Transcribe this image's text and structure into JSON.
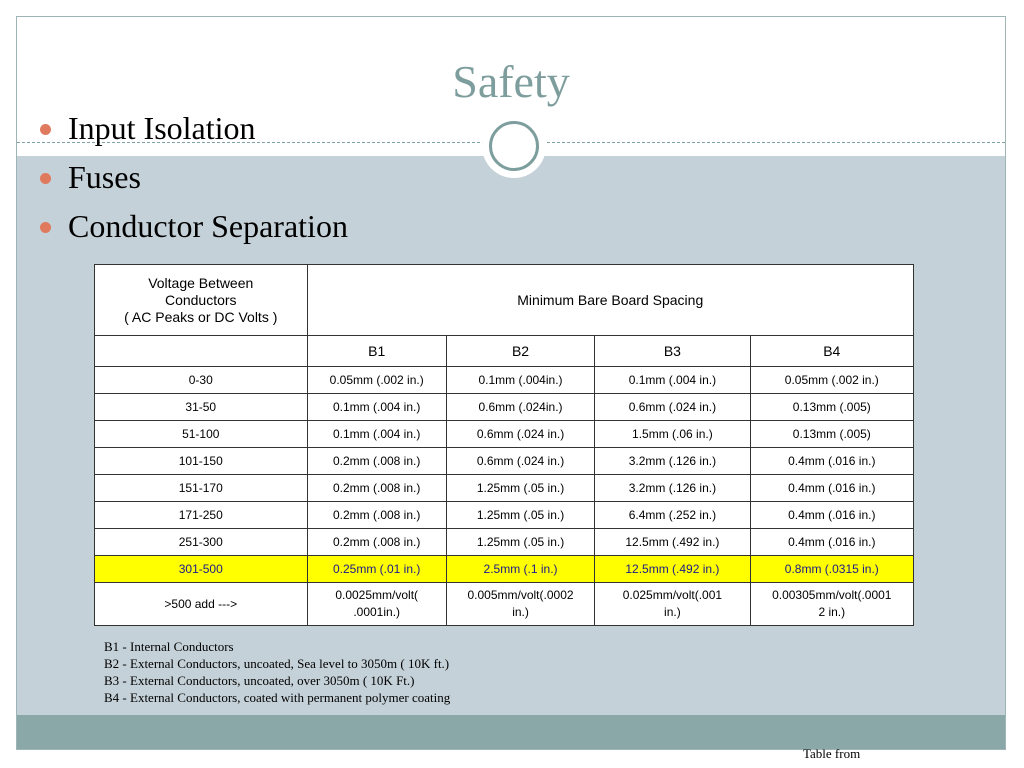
{
  "slide": {
    "title": "Safety",
    "bullets": [
      "Input Isolation",
      "Fuses",
      "Conductor Separation"
    ]
  },
  "table": {
    "header_voltage_line1": "Voltage Between",
    "header_voltage_line2": "Conductors",
    "header_voltage_line3": "( AC Peaks or DC Volts )",
    "header_spacing": "Minimum Bare Board Spacing",
    "columns": [
      "B1",
      "B2",
      "B3",
      "B4"
    ],
    "rows": [
      {
        "range": "0-30",
        "b1": "0.05mm (.002 in.)",
        "b2": "0.1mm (.004in.)",
        "b3": "0.1mm (.004 in.)",
        "b4": "0.05mm (.002 in.)"
      },
      {
        "range": "31-50",
        "b1": "0.1mm (.004 in.)",
        "b2": "0.6mm (.024in.)",
        "b3": "0.6mm (.024 in.)",
        "b4": "0.13mm (.005)"
      },
      {
        "range": "51-100",
        "b1": "0.1mm (.004 in.)",
        "b2": "0.6mm (.024 in.)",
        "b3": "1.5mm (.06 in.)",
        "b4": "0.13mm (.005)"
      },
      {
        "range": "101-150",
        "b1": "0.2mm (.008 in.)",
        "b2": "0.6mm (.024 in.)",
        "b3": "3.2mm (.126 in.)",
        "b4": "0.4mm (.016 in.)"
      },
      {
        "range": "151-170",
        "b1": "0.2mm (.008 in.)",
        "b2": "1.25mm (.05 in.)",
        "b3": "3.2mm (.126 in.)",
        "b4": "0.4mm (.016 in.)"
      },
      {
        "range": "171-250",
        "b1": "0.2mm (.008 in.)",
        "b2": "1.25mm (.05 in.)",
        "b3": "6.4mm (.252 in.)",
        "b4": "0.4mm (.016 in.)"
      },
      {
        "range": "251-300",
        "b1": "0.2mm (.008 in.)",
        "b2": "1.25mm (.05 in.)",
        "b3": "12.5mm (.492 in.)",
        "b4": "0.4mm (.016 in.)"
      },
      {
        "range": "301-500",
        "b1": "0.25mm (.01 in.)",
        "b2": "2.5mm (.1 in.)",
        "b3": "12.5mm (.492 in.)",
        "b4": "0.8mm (.0315 in.)"
      },
      {
        "range": ">500 add --->",
        "b1_line1": "0.0025mm/volt(",
        "b1_line2": ".0001in.)",
        "b2_line1": "0.005mm/volt(.0002",
        "b2_line2": "in.)",
        "b3_line1": "0.025mm/volt(.001",
        "b3_line2": "in.)",
        "b4_line1": "0.00305mm/volt(.0001",
        "b4_line2": "2 in.)"
      }
    ]
  },
  "notes": [
    "B1 - Internal Conductors",
    "B2 - External Conductors, uncoated, Sea level to 3050m ( 10K ft.)",
    "B3 - External Conductors, uncoated, over 3050m ( 10K Ft.)",
    "B4 - External Conductors, coated with permanent polymer coating"
  ],
  "source_note": "Table from",
  "colors": {
    "title": "#7e9e9d",
    "content_bg": "#c5d1d8",
    "bottom_band": "#8aa8a8",
    "bullet": "#e07a5f",
    "highlight_row": "#ffff00"
  }
}
